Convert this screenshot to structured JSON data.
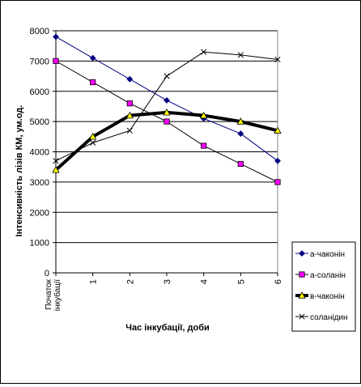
{
  "chart_data": {
    "type": "line",
    "title": "",
    "xlabel": "Час інкубації, доби",
    "ylabel": "Інтенсивність лізів КМ, ум.од.",
    "categories": [
      "Початок інкубації",
      "1",
      "2",
      "3",
      "4",
      "5",
      "6"
    ],
    "ylim": [
      0,
      8000
    ],
    "yticks": [
      0,
      1000,
      2000,
      3000,
      4000,
      5000,
      6000,
      7000,
      8000
    ],
    "grid": true,
    "legend_position": "right",
    "series": [
      {
        "name": "а-чаконін",
        "values": [
          7800,
          7100,
          6400,
          5700,
          5100,
          4600,
          3700
        ],
        "color": "#000080",
        "marker": "diamond",
        "fill": "#000080",
        "width": 1
      },
      {
        "name": "а-соланін",
        "values": [
          7000,
          6300,
          5600,
          5000,
          4200,
          3600,
          3000
        ],
        "color": "#000000",
        "marker": "square",
        "fill": "#ff00ff",
        "width": 1
      },
      {
        "name": "в-чаконін",
        "values": [
          3400,
          4500,
          5200,
          5300,
          5200,
          5000,
          4700
        ],
        "color": "#000000",
        "marker": "triangle",
        "fill": "#ffff00",
        "width": 4
      },
      {
        "name": "соланідин",
        "values": [
          3700,
          4300,
          4700,
          6500,
          7300,
          7200,
          7050
        ],
        "color": "#000000",
        "marker": "x",
        "fill": "none",
        "width": 1
      }
    ]
  }
}
